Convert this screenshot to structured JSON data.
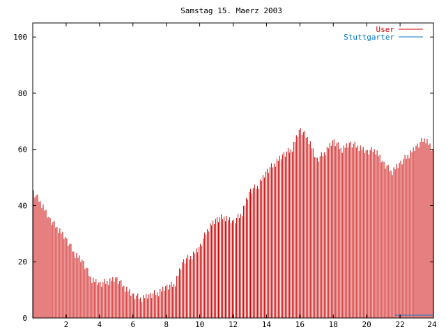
{
  "chart_data": {
    "type": "bar",
    "title": "Samstag 15. Maerz 2003",
    "xlabel": "",
    "ylabel": "",
    "xlim": [
      0,
      24
    ],
    "ylim": [
      0,
      105
    ],
    "x_ticks": [
      "2",
      "4",
      "6",
      "8",
      "10",
      "12",
      "14",
      "16",
      "18",
      "20",
      "22",
      "24"
    ],
    "y_ticks": [
      "0",
      "20",
      "40",
      "60",
      "80",
      "100"
    ],
    "grid": false,
    "legend_position": "top-right",
    "colors": {
      "User": "#cc0000",
      "Stuttgarter": "#0077cc"
    },
    "series": [
      {
        "name": "User",
        "hourly_values": [
          45,
          41,
          35,
          32,
          28,
          23,
          20,
          14,
          12,
          13,
          14,
          11,
          8,
          7,
          8,
          9,
          11,
          12,
          20,
          22,
          25,
          32,
          35,
          36,
          34,
          37,
          45,
          47,
          52,
          55,
          58,
          60,
          67,
          64,
          56,
          59,
          63,
          60,
          62,
          61,
          59,
          60,
          55,
          52,
          55,
          58,
          61,
          64,
          59
        ]
      },
      {
        "name": "Stuttgarter",
        "segments": [
          {
            "from": 21.7,
            "to": 24,
            "value": 1
          }
        ]
      }
    ]
  }
}
